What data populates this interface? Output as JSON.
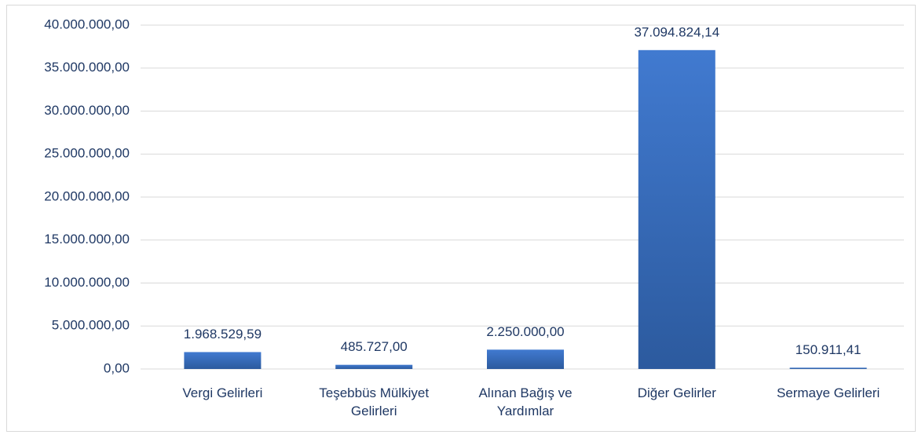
{
  "chart_data": {
    "type": "bar",
    "categories": [
      "Vergi Gelirleri",
      "Teşebbüs Mülkiyet Gelirleri",
      "Alınan Bağış ve Yardımlar",
      "Diğer Gelirler",
      "Sermaye Gelirleri"
    ],
    "values": [
      1968529.59,
      485727.0,
      2250000.0,
      37094824.14,
      150911.41
    ],
    "value_labels": [
      "1.968.529,59",
      "485.727,00",
      "2.250.000,00",
      "37.094.824,14",
      "150.911,41"
    ],
    "color": "#3a70c4",
    "ylim": [
      0,
      40000000
    ],
    "yticks": [
      {
        "value": 0,
        "label": "0,00"
      },
      {
        "value": 5000000,
        "label": "5.000.000,00"
      },
      {
        "value": 10000000,
        "label": "10.000.000,00"
      },
      {
        "value": 15000000,
        "label": "15.000.000,00"
      },
      {
        "value": 20000000,
        "label": "20.000.000,00"
      },
      {
        "value": 25000000,
        "label": "25.000.000,00"
      },
      {
        "value": 30000000,
        "label": "30.000.000,00"
      },
      {
        "value": 35000000,
        "label": "35.000.000,00"
      },
      {
        "value": 40000000,
        "label": "40.000.000,00"
      }
    ],
    "grid": true
  }
}
